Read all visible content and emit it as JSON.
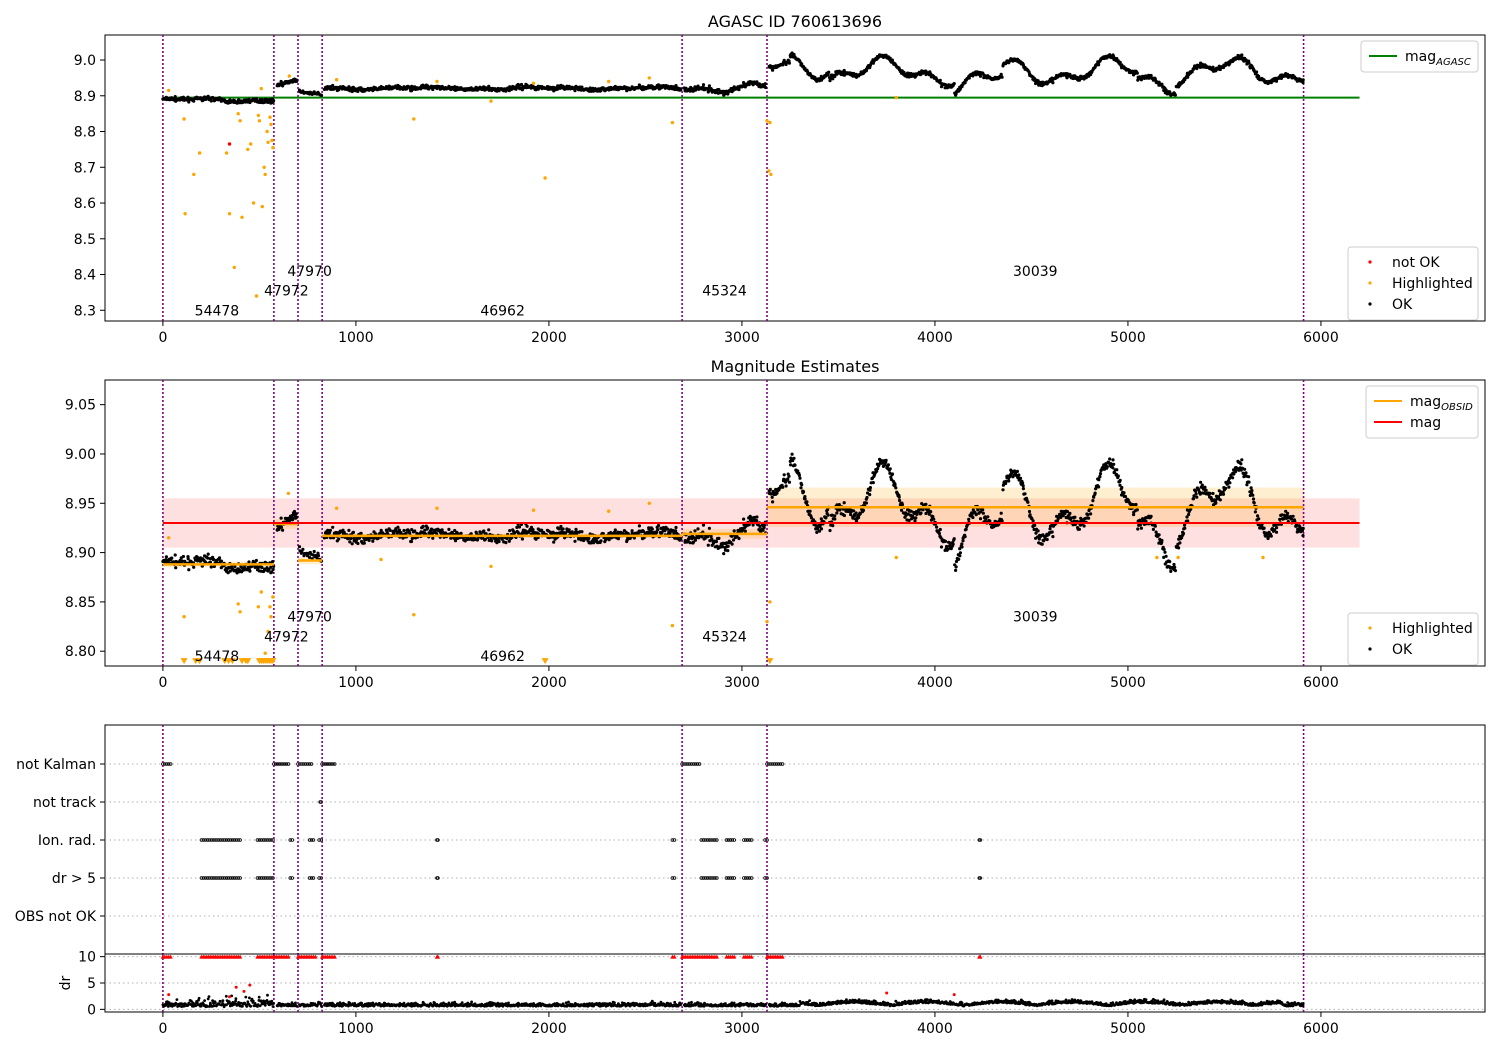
{
  "figure": {
    "top_title": "AGASC ID 760613696",
    "middle_title": "Magnitude Estimates"
  },
  "chart_data": [
    {
      "id": "top",
      "type": "scatter",
      "title": "AGASC ID 760613696",
      "xlim": [
        -300,
        6850
      ],
      "ylim": [
        8.27,
        9.07
      ],
      "x_ticks": [
        0,
        1000,
        2000,
        3000,
        4000,
        5000,
        6000
      ],
      "y_ticks": [
        8.3,
        8.4,
        8.5,
        8.6,
        8.7,
        8.8,
        8.9,
        9.0
      ],
      "obsid_boundaries": [
        0,
        575,
        700,
        825,
        2690,
        3130,
        5910
      ],
      "obsid_labels": [
        {
          "text": "54478",
          "x": 280,
          "y": 8.3
        },
        {
          "text": "47972",
          "x": 640,
          "y": 8.355
        },
        {
          "text": "47970",
          "x": 760,
          "y": 8.41
        },
        {
          "text": "46962",
          "x": 1760,
          "y": 8.3
        },
        {
          "text": "45324",
          "x": 2910,
          "y": 8.355
        },
        {
          "text": "30039",
          "x": 4520,
          "y": 8.41
        }
      ],
      "hlines": [
        {
          "name": "mag_AGASC",
          "y": 8.895,
          "color": "#008000",
          "x": [
            0,
            6200
          ]
        }
      ],
      "series": [
        {
          "name": "not OK",
          "color": "#ff0000",
          "points": [
            [
              345,
              8.765
            ]
          ]
        },
        {
          "name": "Highlighted",
          "color": "#ffa500",
          "points": [
            [
              30,
              8.915
            ],
            [
              110,
              8.835
            ],
            [
              115,
              8.57
            ],
            [
              160,
              8.68
            ],
            [
              190,
              8.74
            ],
            [
              330,
              8.74
            ],
            [
              345,
              8.57
            ],
            [
              370,
              8.42
            ],
            [
              390,
              8.85
            ],
            [
              400,
              8.83
            ],
            [
              410,
              8.56
            ],
            [
              440,
              8.75
            ],
            [
              455,
              8.765
            ],
            [
              470,
              8.6
            ],
            [
              485,
              8.34
            ],
            [
              495,
              8.845
            ],
            [
              500,
              8.83
            ],
            [
              510,
              8.92
            ],
            [
              515,
              8.59
            ],
            [
              525,
              8.7
            ],
            [
              530,
              8.68
            ],
            [
              540,
              8.8
            ],
            [
              545,
              8.77
            ],
            [
              555,
              8.84
            ],
            [
              560,
              8.82
            ],
            [
              565,
              8.775
            ],
            [
              570,
              8.755
            ],
            [
              655,
              8.955
            ],
            [
              900,
              8.945
            ],
            [
              1300,
              8.835
            ],
            [
              1420,
              8.94
            ],
            [
              1700,
              8.885
            ],
            [
              1980,
              8.67
            ],
            [
              1920,
              8.935
            ],
            [
              2310,
              8.94
            ],
            [
              2520,
              8.95
            ],
            [
              2640,
              8.825
            ],
            [
              3130,
              8.83
            ],
            [
              3140,
              8.69
            ],
            [
              3150,
              8.68
            ],
            [
              3145,
              8.825
            ],
            [
              3800,
              8.895
            ]
          ]
        },
        {
          "name": "OK",
          "color": "#000000"
        }
      ],
      "legends": [
        {
          "position": "upper-right",
          "entries": [
            {
              "label": "mag",
              "subscript": "AGASC",
              "kind": "line",
              "color": "#008000"
            }
          ]
        },
        {
          "position": "lower-right",
          "entries": [
            {
              "label": "not OK",
              "kind": "dot",
              "color": "#ff0000"
            },
            {
              "label": "Highlighted",
              "kind": "dot",
              "color": "#ffa500"
            },
            {
              "label": "OK",
              "kind": "dot",
              "color": "#000000"
            }
          ]
        }
      ]
    },
    {
      "id": "middle",
      "type": "scatter",
      "title": "Magnitude Estimates",
      "xlim": [
        -300,
        6850
      ],
      "ylim": [
        8.785,
        9.075
      ],
      "x_ticks": [
        0,
        1000,
        2000,
        3000,
        4000,
        5000,
        6000
      ],
      "y_ticks": [
        8.8,
        8.85,
        8.9,
        8.95,
        9.0,
        9.05
      ],
      "y_tick_labels": [
        "8.80",
        "8.85",
        "8.90",
        "8.95",
        "9.00",
        "9.05"
      ],
      "obsid_boundaries": [
        0,
        575,
        700,
        825,
        2690,
        3130,
        5910
      ],
      "obsid_labels": [
        {
          "text": "54478",
          "x": 280,
          "y": 8.795
        },
        {
          "text": "47972",
          "x": 640,
          "y": 8.815
        },
        {
          "text": "47970",
          "x": 760,
          "y": 8.835
        },
        {
          "text": "46962",
          "x": 1760,
          "y": 8.795
        },
        {
          "text": "45324",
          "x": 2910,
          "y": 8.815
        },
        {
          "text": "30039",
          "x": 4520,
          "y": 8.835
        }
      ],
      "mag": {
        "y": 8.93,
        "band": [
          8.905,
          8.955
        ],
        "x": [
          0,
          6200
        ],
        "color": "#ff0000"
      },
      "mag_obsid": [
        {
          "x": [
            0,
            575
          ],
          "y": 8.888,
          "band": [
            8.885,
            8.891
          ]
        },
        {
          "x": [
            575,
            700
          ],
          "y": 8.929,
          "band": [
            8.924,
            8.934
          ]
        },
        {
          "x": [
            700,
            825
          ],
          "y": 8.892,
          "band": [
            8.888,
            8.896
          ]
        },
        {
          "x": [
            825,
            2690
          ],
          "y": 8.917,
          "band": [
            8.915,
            8.919
          ]
        },
        {
          "x": [
            2690,
            3130
          ],
          "y": 8.919,
          "band": [
            8.914,
            8.924
          ]
        },
        {
          "x": [
            3130,
            5910
          ],
          "y": 8.946,
          "band": [
            8.926,
            8.966
          ]
        }
      ],
      "series": [
        {
          "name": "Highlighted",
          "color": "#ffa500",
          "points": [
            [
              30,
              8.915
            ],
            [
              110,
              8.835
            ],
            [
              390,
              8.848
            ],
            [
              400,
              8.84
            ],
            [
              495,
              8.845
            ],
            [
              510,
              8.86
            ],
            [
              530,
              8.798
            ],
            [
              545,
              8.82
            ],
            [
              555,
              8.845
            ],
            [
              560,
              8.835
            ],
            [
              570,
              8.855
            ],
            [
              650,
              8.96
            ],
            [
              900,
              8.945
            ],
            [
              1130,
              8.893
            ],
            [
              1300,
              8.837
            ],
            [
              1420,
              8.945
            ],
            [
              1700,
              8.886
            ],
            [
              1920,
              8.943
            ],
            [
              2310,
              8.942
            ],
            [
              2520,
              8.95
            ],
            [
              2640,
              8.826
            ],
            [
              3130,
              8.83
            ],
            [
              3145,
              8.85
            ],
            [
              3800,
              8.895
            ],
            [
              5150,
              8.895
            ],
            [
              5260,
              8.895
            ],
            [
              5700,
              8.895
            ]
          ]
        },
        {
          "name": "Highlighted (below range)",
          "color": "#ffa500",
          "marker": "triangle-down",
          "y": 8.79,
          "x": [
            110,
            170,
            190,
            320,
            340,
            360,
            410,
            430,
            440,
            500,
            510,
            520,
            530,
            540,
            550,
            560,
            570,
            1980,
            3145
          ]
        },
        {
          "name": "OK",
          "color": "#000000"
        }
      ],
      "legends": [
        {
          "position": "upper-right",
          "entries": [
            {
              "label": "mag",
              "subscript": "OBSID",
              "kind": "line",
              "color": "#ffa500"
            },
            {
              "label": "mag",
              "kind": "line",
              "color": "#ff0000"
            }
          ]
        },
        {
          "position": "lower-right",
          "entries": [
            {
              "label": "Highlighted",
              "kind": "dot",
              "color": "#ffa500"
            },
            {
              "label": "OK",
              "kind": "dot",
              "color": "#000000"
            }
          ]
        }
      ]
    },
    {
      "id": "flags",
      "type": "scatter",
      "xlim": [
        -300,
        6850
      ],
      "category_rows": [
        "not Kalman",
        "not track",
        "Ion. rad.",
        "dr > 5",
        "OBS not OK"
      ],
      "obsid_boundaries": [
        0,
        575,
        700,
        825,
        2690,
        3130,
        5910
      ],
      "rows": {
        "not Kalman": [
          [
            0,
            40
          ],
          [
            575,
            650
          ],
          [
            700,
            770
          ],
          [
            825,
            890
          ],
          [
            2690,
            2780
          ],
          [
            3130,
            3210
          ]
        ],
        "not track": [
          [
            815,
            820
          ]
        ],
        "Ion. rad.": [
          [
            200,
            400
          ],
          [
            490,
            570
          ],
          [
            660,
            670
          ],
          [
            760,
            780
          ],
          [
            810,
            820
          ],
          [
            1420,
            1425
          ],
          [
            2640,
            2650
          ],
          [
            2790,
            2850
          ],
          [
            2860,
            2870
          ],
          [
            2920,
            2960
          ],
          [
            3010,
            3050
          ],
          [
            3120,
            3130
          ],
          [
            4230,
            4235
          ]
        ],
        "dr > 5": [
          [
            200,
            400
          ],
          [
            490,
            570
          ],
          [
            660,
            670
          ],
          [
            760,
            780
          ],
          [
            810,
            820
          ],
          [
            1420,
            1425
          ],
          [
            2640,
            2650
          ],
          [
            2790,
            2850
          ],
          [
            2860,
            2870
          ],
          [
            2920,
            2960
          ],
          [
            3010,
            3050
          ],
          [
            3120,
            3130
          ],
          [
            4230,
            4235
          ]
        ],
        "OBS not OK": []
      }
    },
    {
      "id": "dr",
      "type": "scatter",
      "ylabel": "dr",
      "xlim": [
        -300,
        6850
      ],
      "ylim": [
        -0.5,
        10.5
      ],
      "x_ticks": [
        0,
        1000,
        2000,
        3000,
        4000,
        5000,
        6000
      ],
      "y_ticks": [
        0,
        5,
        10
      ],
      "obsid_boundaries": [
        0,
        575,
        700,
        825,
        2690,
        3130,
        5910
      ],
      "clipped_marker": {
        "y": 10,
        "color": "#ff0000",
        "marker": "triangle",
        "x_ranges": [
          [
            0,
            40
          ],
          [
            200,
            400
          ],
          [
            490,
            650
          ],
          [
            700,
            770
          ],
          [
            780,
            790
          ],
          [
            825,
            890
          ],
          [
            1420,
            1425
          ],
          [
            2640,
            2650
          ],
          [
            2690,
            2850
          ],
          [
            2860,
            2870
          ],
          [
            2920,
            2960
          ],
          [
            3010,
            3050
          ],
          [
            3130,
            3210
          ],
          [
            4230,
            4235
          ]
        ]
      },
      "series": [
        {
          "name": "not OK",
          "color": "#ff0000",
          "points": [
            [
              30,
              2.8
            ],
            [
              345,
              2.4
            ],
            [
              380,
              4.2
            ],
            [
              420,
              3.4
            ],
            [
              450,
              4.6
            ],
            [
              3750,
              3.1
            ],
            [
              4100,
              2.8
            ]
          ]
        },
        {
          "name": "OK",
          "color": "#000000"
        }
      ]
    }
  ]
}
